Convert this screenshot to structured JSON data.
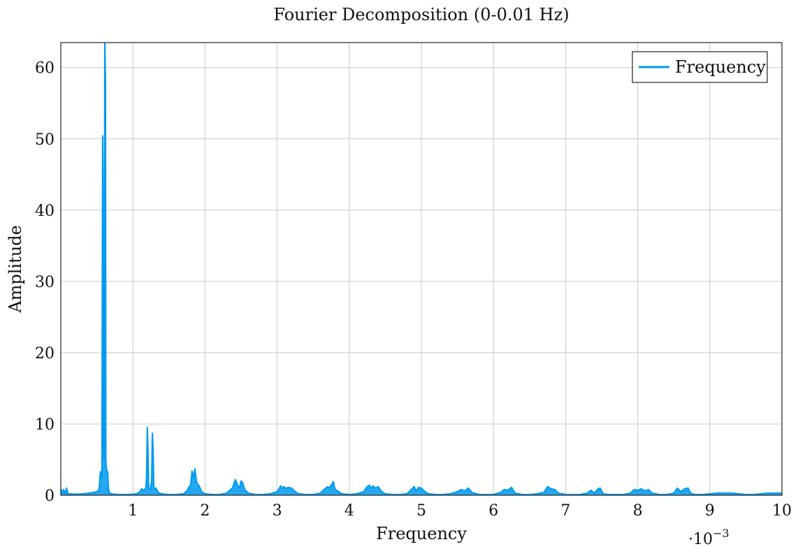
{
  "chart_data": {
    "type": "line",
    "title": "Fourier Decomposition (0-0.01 Hz)",
    "xlabel": "Frequency",
    "ylabel": "Amplitude",
    "x_scale_label": "·10",
    "x_scale_exponent": "−3",
    "xlim": [
      0,
      10
    ],
    "ylim": [
      0,
      63.5
    ],
    "grid": true,
    "legend_position": "top-right",
    "x_ticks": [
      "1",
      "2",
      "3",
      "4",
      "5",
      "6",
      "7",
      "8",
      "9",
      "10"
    ],
    "y_ticks": [
      "0",
      "10",
      "20",
      "30",
      "40",
      "50",
      "60"
    ],
    "series": [
      {
        "name": "Frequency",
        "color": "#0099ee",
        "x": [
          0.0,
          0.02,
          0.04,
          0.06,
          0.08,
          0.1,
          0.2,
          0.3,
          0.4,
          0.45,
          0.5,
          0.53,
          0.55,
          0.56,
          0.57,
          0.58,
          0.585,
          0.59,
          0.6,
          0.61,
          0.62,
          0.625,
          0.63,
          0.64,
          0.65,
          0.66,
          0.67,
          0.68,
          0.7,
          0.75,
          0.8,
          0.9,
          1.0,
          1.05,
          1.1,
          1.12,
          1.15,
          1.17,
          1.18,
          1.19,
          1.2,
          1.21,
          1.22,
          1.24,
          1.26,
          1.27,
          1.28,
          1.29,
          1.3,
          1.32,
          1.35,
          1.4,
          1.5,
          1.6,
          1.7,
          1.75,
          1.78,
          1.8,
          1.82,
          1.84,
          1.86,
          1.88,
          1.9,
          1.92,
          1.95,
          2.0,
          2.1,
          2.2,
          2.3,
          2.38,
          2.42,
          2.45,
          2.48,
          2.5,
          2.52,
          2.55,
          2.6,
          2.7,
          2.8,
          2.9,
          3.0,
          3.05,
          3.08,
          3.1,
          3.12,
          3.15,
          3.2,
          3.25,
          3.3,
          3.4,
          3.5,
          3.6,
          3.65,
          3.7,
          3.72,
          3.75,
          3.78,
          3.8,
          3.85,
          3.9,
          4.0,
          4.1,
          4.2,
          4.25,
          4.28,
          4.3,
          4.33,
          4.36,
          4.4,
          4.45,
          4.5,
          4.6,
          4.7,
          4.8,
          4.9,
          4.93,
          4.96,
          5.0,
          5.05,
          5.1,
          5.2,
          5.3,
          5.4,
          5.5,
          5.55,
          5.6,
          5.65,
          5.7,
          5.8,
          5.9,
          6.0,
          6.1,
          6.15,
          6.2,
          6.25,
          6.3,
          6.4,
          6.5,
          6.6,
          6.7,
          6.75,
          6.8,
          6.85,
          6.9,
          7.0,
          7.1,
          7.2,
          7.3,
          7.35,
          7.4,
          7.45,
          7.48,
          7.52,
          7.6,
          7.7,
          7.8,
          7.9,
          7.95,
          8.0,
          8.05,
          8.1,
          8.15,
          8.2,
          8.3,
          8.4,
          8.5,
          8.55,
          8.6,
          8.65,
          8.7,
          8.72,
          8.75,
          8.8,
          8.9,
          9.0,
          9.1,
          9.2,
          9.3,
          9.4,
          9.5,
          9.6,
          9.7,
          9.8,
          9.9,
          10.0
        ],
        "y": [
          0.9,
          0.3,
          0.8,
          0.2,
          1.0,
          0.2,
          0.15,
          0.2,
          0.3,
          0.4,
          0.5,
          0.8,
          3.3,
          3.0,
          2.5,
          50.4,
          45.0,
          8.0,
          5.0,
          64.0,
          58.0,
          5.0,
          4.0,
          3.2,
          3.3,
          1.0,
          0.5,
          0.3,
          0.2,
          0.15,
          0.1,
          0.1,
          0.15,
          0.2,
          0.5,
          0.9,
          0.7,
          0.9,
          1.0,
          3.0,
          9.5,
          6.0,
          1.0,
          0.8,
          2.0,
          8.7,
          6.5,
          1.2,
          0.9,
          1.0,
          0.4,
          0.2,
          0.1,
          0.1,
          0.2,
          0.6,
          1.2,
          1.4,
          3.4,
          2.5,
          3.7,
          2.0,
          1.5,
          1.3,
          0.5,
          0.2,
          0.1,
          0.1,
          0.3,
          1.0,
          2.2,
          1.5,
          1.0,
          2.0,
          1.8,
          0.8,
          0.3,
          0.1,
          0.1,
          0.2,
          0.5,
          1.3,
          1.0,
          1.2,
          0.9,
          1.1,
          1.0,
          0.5,
          0.2,
          0.1,
          0.1,
          0.3,
          0.8,
          1.2,
          1.0,
          1.4,
          1.9,
          0.9,
          0.5,
          0.2,
          0.1,
          0.2,
          0.5,
          1.2,
          1.4,
          1.0,
          1.3,
          1.0,
          1.2,
          0.5,
          0.2,
          0.1,
          0.1,
          0.2,
          1.2,
          0.6,
          1.1,
          1.0,
          0.5,
          0.2,
          0.1,
          0.1,
          0.2,
          0.5,
          0.8,
          0.6,
          1.0,
          0.4,
          0.1,
          0.1,
          0.1,
          0.4,
          0.8,
          0.7,
          1.1,
          0.3,
          0.1,
          0.1,
          0.2,
          0.4,
          1.2,
          0.9,
          0.8,
          0.3,
          0.1,
          0.1,
          0.1,
          0.3,
          0.7,
          0.3,
          0.9,
          1.0,
          0.2,
          0.1,
          0.1,
          0.1,
          0.3,
          0.8,
          0.7,
          0.9,
          0.6,
          0.8,
          0.3,
          0.1,
          0.1,
          0.3,
          1.0,
          0.5,
          0.9,
          1.0,
          0.5,
          0.2,
          0.1,
          0.1,
          0.2,
          0.3,
          0.3,
          0.3,
          0.2,
          0.1,
          0.1,
          0.2,
          0.3,
          0.3,
          0.3
        ]
      }
    ]
  }
}
